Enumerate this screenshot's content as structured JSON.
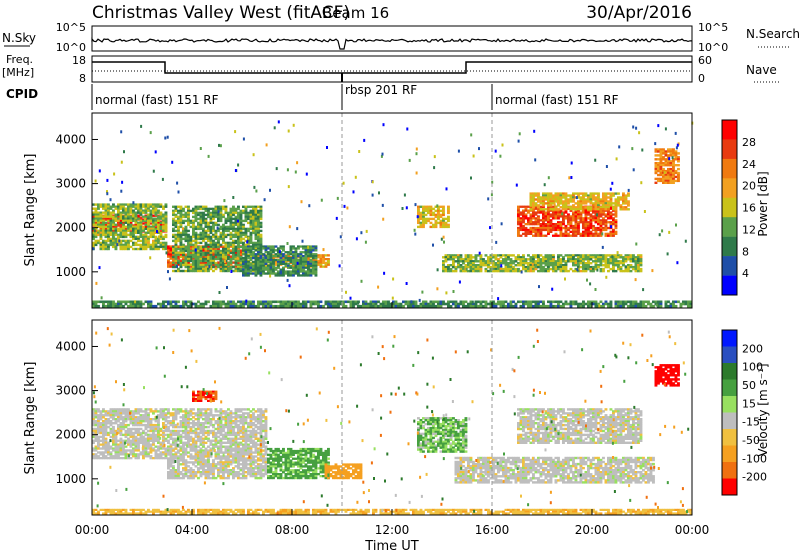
{
  "header": {
    "station": "Christmas Valley West (fitACF)",
    "beam": "Beam 16",
    "date": "30/Apr/2016"
  },
  "summary": {
    "nsky_label": "N.Sky",
    "nsky_ticks": [
      "10^5",
      "10^0"
    ],
    "nsearch_label": "N.Search",
    "nsearch_ticks": [
      "10^5",
      "10^0"
    ],
    "freq_label": "Freq.",
    "freq_unit": "[MHz]",
    "freq_ticks": [
      "18",
      "8"
    ],
    "nave_label": "Nave",
    "nave_ticks": [
      "60",
      "0"
    ],
    "cpid_label": "CPID",
    "cpid_segments": [
      {
        "label": "normal (fast) 151 RF",
        "start_hour": 0,
        "end_hour": 10
      },
      {
        "label": "rbsp 201 RF",
        "start_hour": 10,
        "end_hour": 16
      },
      {
        "label": "normal (fast) 151 RF",
        "start_hour": 16,
        "end_hour": 24
      }
    ]
  },
  "colors": {
    "power": [
      "#0000ff",
      "#1f4fa8",
      "#2f7a4a",
      "#5aa04a",
      "#c9c21a",
      "#f2a020",
      "#f07a10",
      "#e83a10",
      "#ff0000"
    ],
    "velocity": [
      "#0018ff",
      "#2a4fc0",
      "#2c7a2c",
      "#46a040",
      "#98e060",
      "#bebebe",
      "#f0c040",
      "#f5a020",
      "#f07010",
      "#ff0000"
    ]
  },
  "chart_data": [
    {
      "type": "heatmap",
      "name": "power",
      "xlabel": "",
      "ylabel": "Slant Range [km]",
      "x_ticks": [
        "00:00",
        "04:00",
        "08:00",
        "12:00",
        "16:00",
        "20:00",
        "00:00"
      ],
      "y_ticks": [
        1000,
        2000,
        3000,
        4000
      ],
      "xlim": [
        0,
        24
      ],
      "ylim": [
        180,
        4600
      ],
      "colorbar_label": "Power [dB]",
      "colorbar_ticks": [
        4,
        8,
        12,
        16,
        20,
        24,
        28
      ],
      "colorbar_range": [
        0,
        32
      ],
      "regions": [
        {
          "t0": 0,
          "t1": 3,
          "r0": 1900,
          "r1": 2300,
          "value": 28
        },
        {
          "t0": 0,
          "t1": 3,
          "r0": 1500,
          "r1": 2550,
          "value": 14
        },
        {
          "t0": 3,
          "t1": 6,
          "r0": 1100,
          "r1": 1600,
          "value": 26
        },
        {
          "t0": 3.2,
          "t1": 6.8,
          "r0": 1000,
          "r1": 2500,
          "value": 12
        },
        {
          "t0": 6.5,
          "t1": 9.5,
          "r0": 1100,
          "r1": 1400,
          "value": 20
        },
        {
          "t0": 6,
          "t1": 9,
          "r0": 900,
          "r1": 1600,
          "value": 10
        },
        {
          "t0": 13,
          "t1": 14.3,
          "r0": 2000,
          "r1": 2500,
          "value": 18
        },
        {
          "t0": 14,
          "t1": 22,
          "r0": 1000,
          "r1": 1400,
          "value": 14
        },
        {
          "t0": 17,
          "t1": 21,
          "r0": 1800,
          "r1": 2500,
          "value": 26
        },
        {
          "t0": 17.5,
          "t1": 21.5,
          "r0": 2400,
          "r1": 2800,
          "value": 18
        },
        {
          "t0": 22.5,
          "t1": 23.5,
          "r0": 3000,
          "r1": 3800,
          "value": 22
        },
        {
          "t0": 0,
          "t1": 24,
          "r0": 200,
          "r1": 350,
          "value": 10
        }
      ]
    },
    {
      "type": "heatmap",
      "name": "velocity",
      "xlabel": "Time UT",
      "ylabel": "Slant Range [km]",
      "x_ticks": [
        "00:00",
        "04:00",
        "08:00",
        "12:00",
        "16:00",
        "20:00",
        "00:00"
      ],
      "y_ticks": [
        1000,
        2000,
        3000,
        4000
      ],
      "xlim": [
        0,
        24
      ],
      "ylim": [
        180,
        4600
      ],
      "colorbar_label": "Velocity [m s⁻¹]",
      "colorbar_ticks": [
        200,
        100,
        50,
        15,
        -15,
        -50,
        -100,
        -200
      ],
      "regions": [
        {
          "t0": 0,
          "t1": 3,
          "r0": 1800,
          "r1": 2600,
          "value": 0
        },
        {
          "t0": 0,
          "t1": 3,
          "r0": 1450,
          "r1": 1800,
          "value": 0
        },
        {
          "t0": 3,
          "t1": 7,
          "r0": 1000,
          "r1": 2600,
          "value": 0
        },
        {
          "t0": 7,
          "t1": 9.5,
          "r0": 1000,
          "r1": 1700,
          "value": 40
        },
        {
          "t0": 9.3,
          "t1": 10.8,
          "r0": 1000,
          "r1": 1350,
          "value": -80
        },
        {
          "t0": 4,
          "t1": 5,
          "r0": 2750,
          "r1": 3000,
          "value": -150
        },
        {
          "t0": 13,
          "t1": 15,
          "r0": 1600,
          "r1": 2400,
          "value": 30
        },
        {
          "t0": 14.5,
          "t1": 22.5,
          "r0": 900,
          "r1": 1500,
          "value": 0
        },
        {
          "t0": 17,
          "t1": 22,
          "r0": 1800,
          "r1": 2600,
          "value": 0
        },
        {
          "t0": 22.5,
          "t1": 23.5,
          "r0": 3100,
          "r1": 3600,
          "value": -200
        },
        {
          "t0": 0,
          "t1": 24,
          "r0": 200,
          "r1": 320,
          "value": -40
        }
      ]
    }
  ]
}
